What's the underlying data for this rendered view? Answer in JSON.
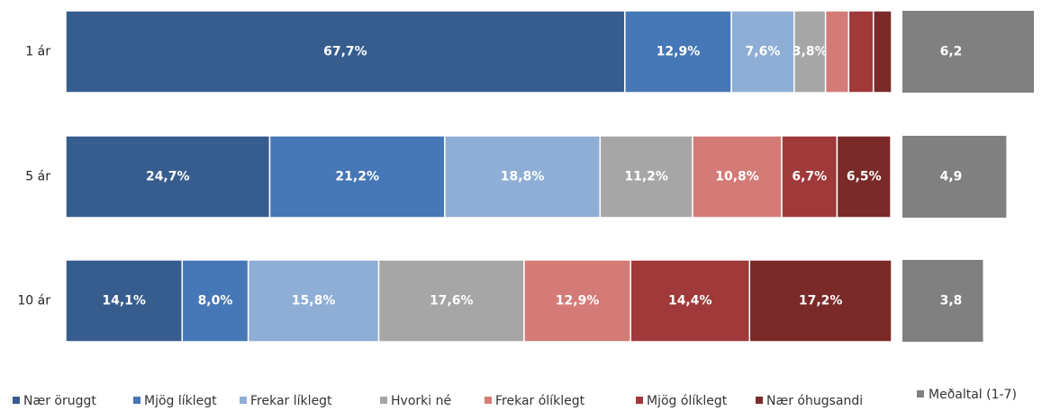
{
  "chart_data": [
    {
      "type": "stacked_bar_h",
      "categories": [
        "1 ár",
        "5 ár",
        "10 ár"
      ],
      "xlim": [
        0,
        100
      ],
      "series": [
        {
          "name": "Nær öruggt",
          "color": "#375d8f",
          "values": [
            67.7,
            24.7,
            14.1
          ],
          "value_labels": [
            "67,7%",
            "24,7%",
            "14,1%"
          ]
        },
        {
          "name": "Mjög líklegt",
          "color": "#4677b6",
          "values": [
            12.9,
            21.2,
            8.0
          ],
          "value_labels": [
            "12,9%",
            "21,2%",
            "8,0%"
          ]
        },
        {
          "name": "Frekar líklegt",
          "color": "#8eaed6",
          "values": [
            7.6,
            18.8,
            15.8
          ],
          "value_labels": [
            "7,6%",
            "18,8%",
            "15,8%"
          ]
        },
        {
          "name": "Hvorki né",
          "color": "#a6a6a6",
          "values": [
            3.8,
            11.2,
            17.6
          ],
          "value_labels": [
            "3,8%",
            "11,2%",
            "17,6%"
          ]
        },
        {
          "name": "Frekar ólíklegt",
          "color": "#d47b77",
          "values": [
            2.8,
            10.8,
            12.9
          ],
          "value_labels": [
            null,
            "10,8%",
            "12,9%"
          ]
        },
        {
          "name": "Mjög ólíklegt",
          "color": "#a0393a",
          "values": [
            3.0,
            6.7,
            14.4
          ],
          "value_labels": [
            null,
            "6,7%",
            "14,4%"
          ]
        },
        {
          "name": "Nær óhugsandi",
          "color": "#792a29",
          "values": [
            2.2,
            6.5,
            17.2
          ],
          "value_labels": [
            null,
            "6,5%",
            "17,2%"
          ]
        }
      ]
    },
    {
      "type": "bar_h",
      "xlim": [
        0,
        6.2
      ],
      "series": [
        {
          "name": "Meðaltal (1-7)",
          "color": "#808080",
          "values": [
            6.2,
            4.9,
            3.8
          ],
          "value_labels": [
            "6,2",
            "4,9",
            "3,8"
          ]
        }
      ]
    }
  ]
}
